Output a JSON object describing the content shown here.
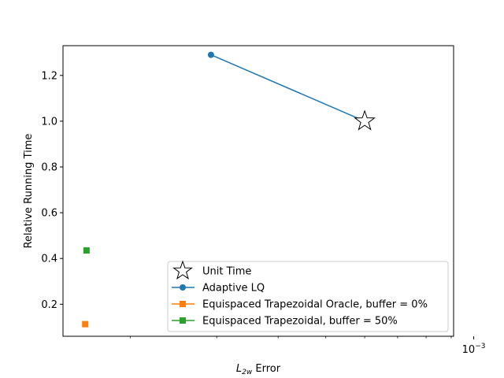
{
  "chart_data": {
    "type": "line",
    "xscale": "log",
    "xlim": [
      0.000146,
      0.00091
    ],
    "ylim": [
      0.06,
      1.33
    ],
    "xlabel": {
      "prefix": "L",
      "subscript": "2w",
      "suffix": " Error"
    },
    "ylabel": "Relative Running Time",
    "x_major_ticks": [
      0.001
    ],
    "x_major_tick_label": {
      "base": "10",
      "exponent": "−3"
    },
    "x_minor_ticks": [
      0.0002,
      0.0003,
      0.0004,
      0.0005,
      0.0006,
      0.0007,
      0.0008,
      0.0009
    ],
    "y_ticks": [
      0.2,
      0.4,
      0.6,
      0.8,
      1.0,
      1.2
    ],
    "y_tick_labels": [
      "0.2",
      "0.4",
      "0.6",
      "0.8",
      "1.0",
      "1.2"
    ],
    "grid": false,
    "legend_position": "lower-right",
    "series": [
      {
        "name": "Unit Time",
        "marker": "star",
        "color": "#000000",
        "line": false,
        "points": [
          [
            0.0006,
            1.0
          ]
        ]
      },
      {
        "name": "Adaptive LQ",
        "marker": "circle",
        "color": "#1f77b4",
        "line": true,
        "points": [
          [
            0.000292,
            1.29
          ],
          [
            0.0006,
            1.0
          ]
        ]
      },
      {
        "name": "Equispaced Trapezoidal Oracle, buffer = 0%",
        "marker": "square",
        "color": "#ff7f0e",
        "line": true,
        "points": [
          [
            0.000162,
            0.113
          ]
        ]
      },
      {
        "name": "Equispaced Trapezoidal, buffer = 50%",
        "marker": "square",
        "color": "#2ca02c",
        "line": true,
        "points": [
          [
            0.000163,
            0.435
          ]
        ]
      }
    ]
  }
}
